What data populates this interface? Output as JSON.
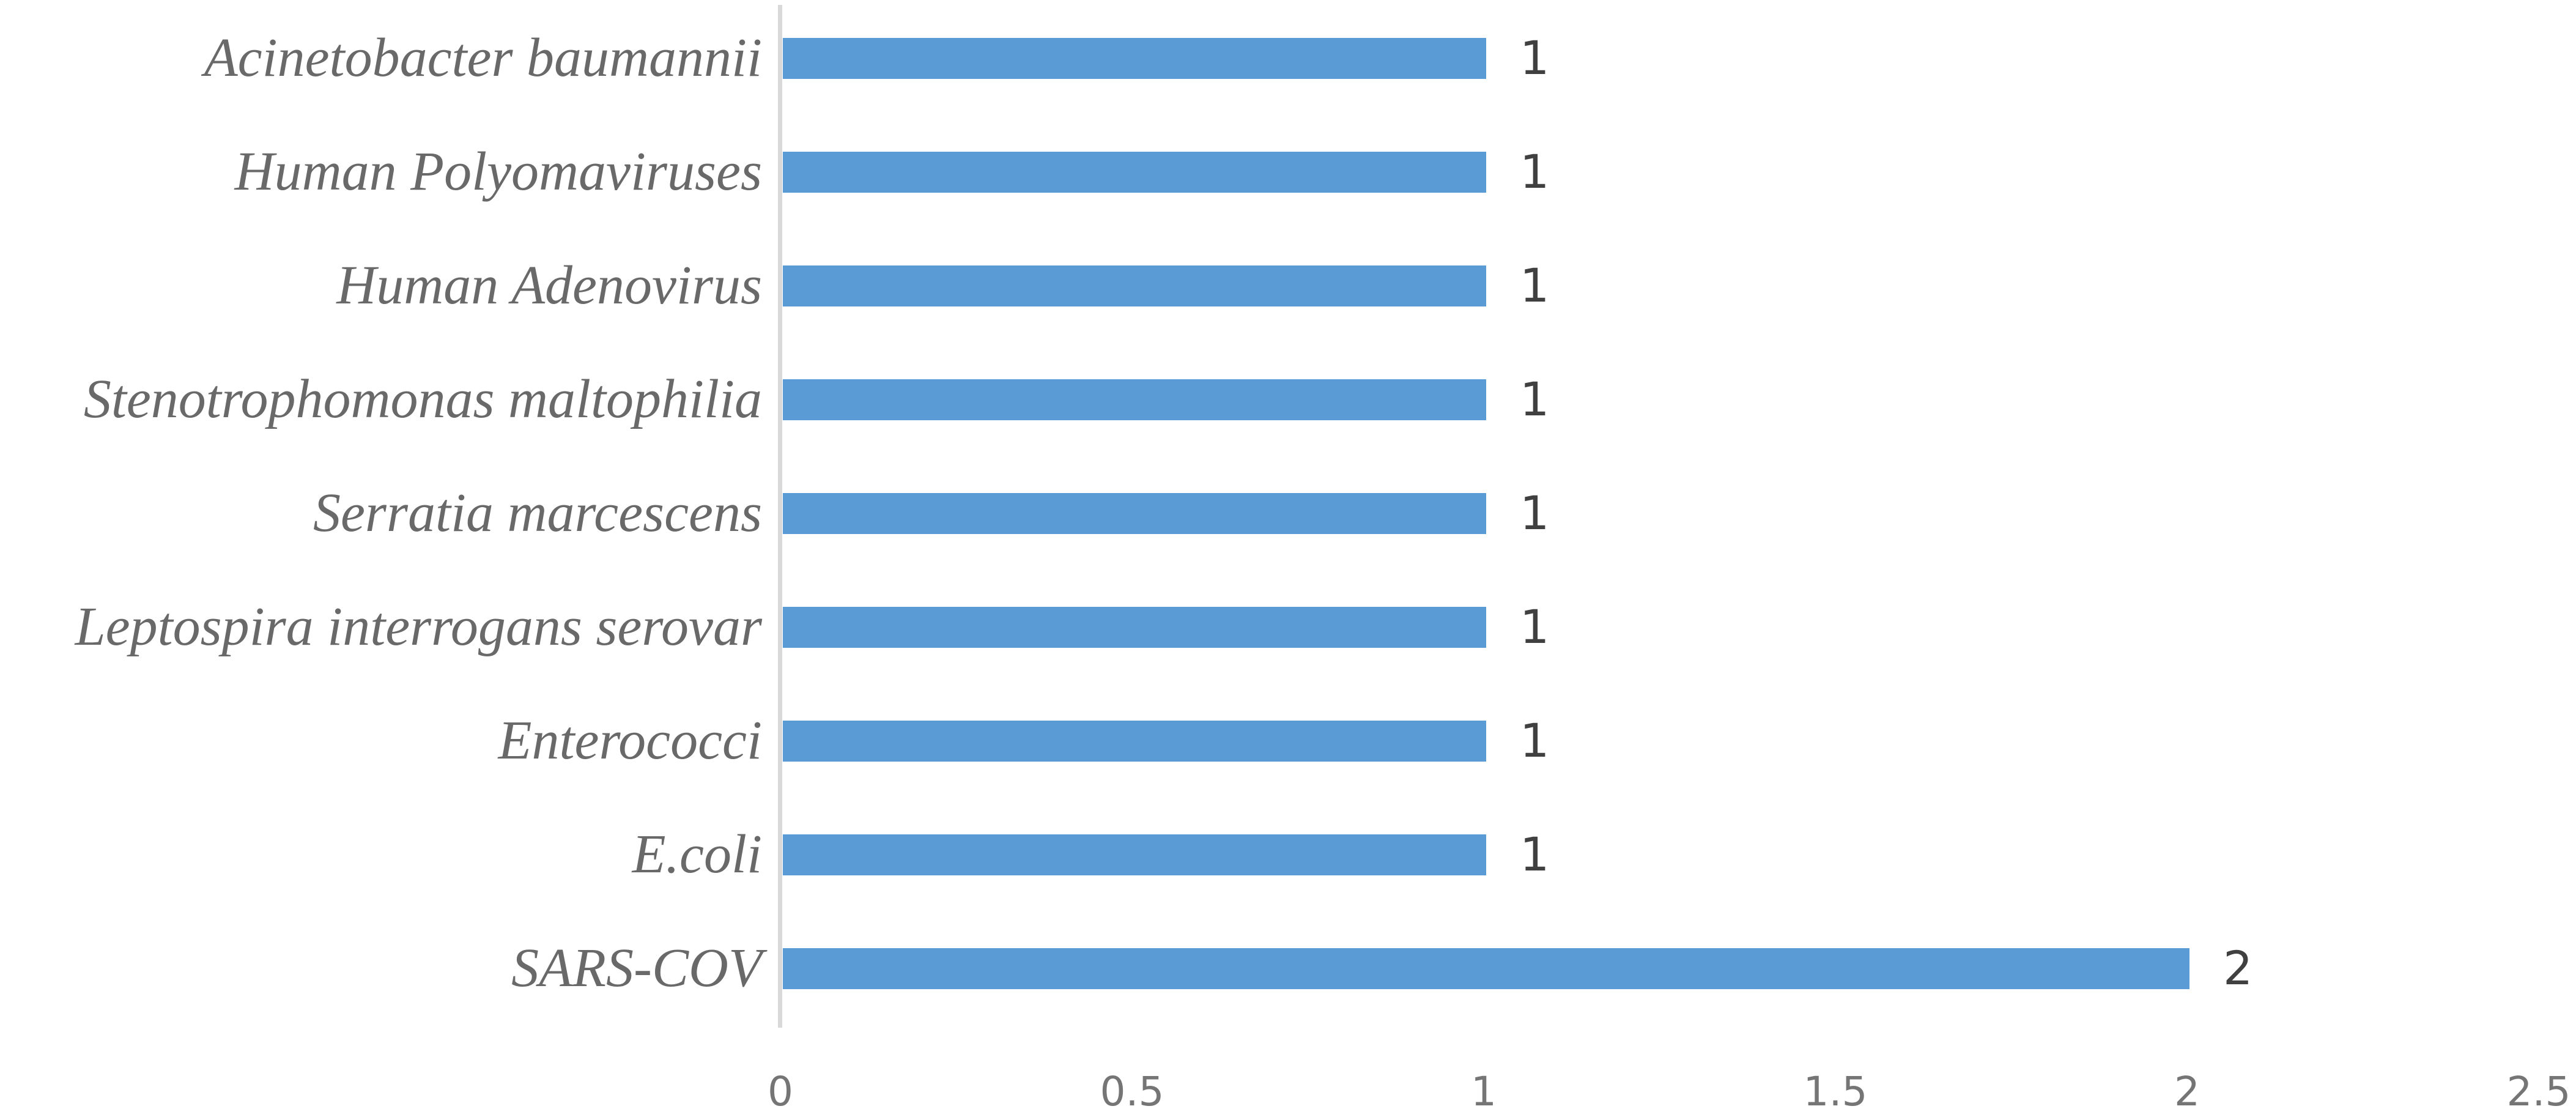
{
  "chart_data": {
    "type": "bar",
    "orientation": "horizontal",
    "title": "",
    "xlabel": "",
    "ylabel": "",
    "categories": [
      "Acinetobacter baumannii",
      "Human Polyomaviruses",
      "Human Adenovirus",
      "Stenotrophomonas maltophilia",
      "Serratia marcescens",
      "Leptospira interrogans serovar",
      "Enterococci",
      "E.coli",
      "SARS-COV"
    ],
    "values": [
      1,
      1,
      1,
      1,
      1,
      1,
      1,
      1,
      2
    ],
    "data_labels": [
      "1",
      "1",
      "1",
      "1",
      "1",
      "1",
      "1",
      "1",
      "2"
    ],
    "xlim": [
      0,
      2.5
    ],
    "x_ticks": [
      0,
      0.5,
      1,
      1.5,
      2,
      2.5
    ],
    "x_tick_labels": [
      "0",
      "0.5",
      "1",
      "1.5",
      "2",
      "2.5"
    ],
    "grid": false,
    "legend": false,
    "colors": {
      "bar": "#5B9BD5",
      "axis_line": "#D9D9D9",
      "category_label": "#696969",
      "value_label": "#404040",
      "tick_label": "#757575"
    }
  }
}
